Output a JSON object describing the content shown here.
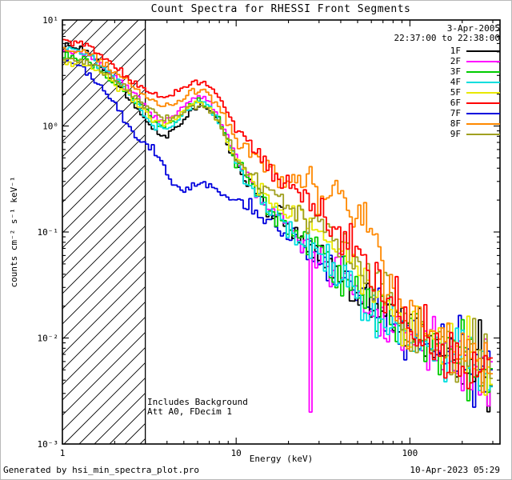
{
  "title": "Count Spectra for RHESSI Front Segments",
  "header": {
    "date": "3-Apr-2005",
    "time_range": "22:37:00 to 22:38:00"
  },
  "annotations": {
    "line1": "Includes Background",
    "line2": "Att A0, FDecim 1"
  },
  "footer": {
    "left": "Generated by hsi_min_spectra_plot.pro",
    "right": "10-Apr-2023 05:29"
  },
  "chart_data": {
    "type": "line",
    "mode": "histogram-step",
    "x_scale": "log",
    "y_scale": "log",
    "title": "Count Spectra for RHESSI Front Segments",
    "xlabel": "Energy (keV)",
    "ylabel": "counts cm⁻² s⁻¹ keV⁻¹",
    "xlim": [
      1,
      330
    ],
    "ylim": [
      0.001,
      10
    ],
    "x_ticks": [
      1,
      10,
      100
    ],
    "y_ticks": [
      0.001,
      0.01,
      0.1,
      1,
      10
    ],
    "grid": false,
    "legend_position": "top-right",
    "hatch_region": {
      "x_start": 1,
      "x_end": 3,
      "style": "diagonal-hatch"
    },
    "series": [
      {
        "name": "1F",
        "color": "#000000",
        "points": [
          [
            1,
            5.8
          ],
          [
            1.4,
            5.2
          ],
          [
            1.8,
            3.2
          ],
          [
            2.2,
            2.2
          ],
          [
            2.8,
            1.35
          ],
          [
            3.3,
            0.95
          ],
          [
            3.8,
            0.8
          ],
          [
            4.5,
            0.9
          ],
          [
            5.5,
            1.35
          ],
          [
            6.3,
            1.6
          ],
          [
            7,
            1.45
          ],
          [
            8,
            1.05
          ],
          [
            9,
            0.65
          ],
          [
            10,
            0.45
          ],
          [
            12,
            0.28
          ],
          [
            15,
            0.17
          ],
          [
            20,
            0.11
          ],
          [
            25,
            0.08
          ],
          [
            30,
            0.06
          ],
          [
            40,
            0.038
          ],
          [
            50,
            0.028
          ],
          [
            60,
            0.022
          ],
          [
            80,
            0.015
          ],
          [
            100,
            0.012
          ],
          [
            130,
            0.0095
          ],
          [
            160,
            0.008
          ],
          [
            200,
            0.007
          ],
          [
            250,
            0.0055
          ],
          [
            300,
            0.0045
          ]
        ]
      },
      {
        "name": "2F",
        "color": "#ff00ff",
        "points": [
          [
            1,
            5.2
          ],
          [
            1.4,
            4.6
          ],
          [
            1.8,
            3.4
          ],
          [
            2.2,
            2.6
          ],
          [
            2.8,
            1.8
          ],
          [
            3.3,
            1.3
          ],
          [
            3.8,
            1.1
          ],
          [
            4.5,
            1.3
          ],
          [
            5.5,
            1.8
          ],
          [
            6.3,
            1.9
          ],
          [
            7,
            1.7
          ],
          [
            8,
            1.2
          ],
          [
            9,
            0.75
          ],
          [
            10,
            0.5
          ],
          [
            12,
            0.3
          ],
          [
            15,
            0.18
          ],
          [
            20,
            0.11
          ],
          [
            25,
            0.08
          ],
          [
            30,
            0.06
          ],
          [
            40,
            0.04
          ],
          [
            50,
            0.028
          ],
          [
            60,
            0.02
          ],
          [
            80,
            0.014
          ],
          [
            100,
            0.011
          ],
          [
            130,
            0.009
          ],
          [
            160,
            0.0075
          ],
          [
            200,
            0.0065
          ],
          [
            250,
            0.005
          ],
          [
            300,
            0.004
          ]
        ],
        "dropouts": [
          {
            "x": 27,
            "y": 0.002
          }
        ]
      },
      {
        "name": "3F",
        "color": "#00cc00",
        "points": [
          [
            1,
            4.6
          ],
          [
            1.4,
            4.2
          ],
          [
            1.8,
            3.0
          ],
          [
            2.2,
            2.3
          ],
          [
            2.8,
            1.6
          ],
          [
            3.3,
            1.15
          ],
          [
            3.8,
            0.95
          ],
          [
            4.5,
            1.15
          ],
          [
            5.5,
            1.6
          ],
          [
            6.3,
            1.75
          ],
          [
            7,
            1.55
          ],
          [
            8,
            1.15
          ],
          [
            9,
            0.7
          ],
          [
            10,
            0.48
          ],
          [
            12,
            0.3
          ],
          [
            15,
            0.18
          ],
          [
            20,
            0.11
          ],
          [
            25,
            0.085
          ],
          [
            30,
            0.065
          ],
          [
            40,
            0.04
          ],
          [
            50,
            0.03
          ],
          [
            60,
            0.022
          ],
          [
            80,
            0.015
          ],
          [
            100,
            0.012
          ],
          [
            130,
            0.0095
          ],
          [
            160,
            0.008
          ],
          [
            200,
            0.007
          ],
          [
            250,
            0.0055
          ],
          [
            300,
            0.0042
          ]
        ]
      },
      {
        "name": "4F",
        "color": "#00dede",
        "points": [
          [
            1,
            5.5
          ],
          [
            1.4,
            4.8
          ],
          [
            1.8,
            3.3
          ],
          [
            2.2,
            2.4
          ],
          [
            2.8,
            1.5
          ],
          [
            3.3,
            1.05
          ],
          [
            3.8,
            0.9
          ],
          [
            4.5,
            1.1
          ],
          [
            5.5,
            1.55
          ],
          [
            6.3,
            1.7
          ],
          [
            7,
            1.5
          ],
          [
            8,
            1.1
          ],
          [
            9,
            0.68
          ],
          [
            10,
            0.46
          ],
          [
            12,
            0.28
          ],
          [
            15,
            0.17
          ],
          [
            20,
            0.1
          ],
          [
            25,
            0.075
          ],
          [
            30,
            0.058
          ],
          [
            40,
            0.036
          ],
          [
            50,
            0.026
          ],
          [
            60,
            0.02
          ],
          [
            80,
            0.013
          ],
          [
            100,
            0.01
          ],
          [
            130,
            0.008
          ],
          [
            160,
            0.007
          ],
          [
            200,
            0.006
          ],
          [
            250,
            0.0045
          ],
          [
            300,
            0.0035
          ]
        ]
      },
      {
        "name": "5F",
        "color": "#e8e800",
        "points": [
          [
            1,
            4.0
          ],
          [
            1.4,
            3.8
          ],
          [
            1.8,
            2.9
          ],
          [
            2.2,
            2.2
          ],
          [
            2.8,
            1.55
          ],
          [
            3.3,
            1.2
          ],
          [
            3.8,
            1.0
          ],
          [
            4.5,
            1.2
          ],
          [
            5.5,
            1.6
          ],
          [
            6.3,
            1.7
          ],
          [
            7,
            1.5
          ],
          [
            8,
            1.1
          ],
          [
            9,
            0.7
          ],
          [
            10,
            0.5
          ],
          [
            12,
            0.33
          ],
          [
            15,
            0.22
          ],
          [
            20,
            0.15
          ],
          [
            25,
            0.12
          ],
          [
            30,
            0.1
          ],
          [
            40,
            0.065
          ],
          [
            50,
            0.045
          ],
          [
            60,
            0.03
          ],
          [
            80,
            0.018
          ],
          [
            100,
            0.013
          ],
          [
            130,
            0.01
          ],
          [
            160,
            0.0085
          ],
          [
            200,
            0.0075
          ],
          [
            250,
            0.006
          ],
          [
            300,
            0.0045
          ]
        ]
      },
      {
        "name": "6F",
        "color": "#ff0000",
        "points": [
          [
            1,
            6.5
          ],
          [
            1.4,
            5.8
          ],
          [
            1.8,
            4.2
          ],
          [
            2.2,
            3.2
          ],
          [
            2.8,
            2.4
          ],
          [
            3.3,
            2.0
          ],
          [
            3.8,
            1.8
          ],
          [
            4.5,
            2.0
          ],
          [
            5.5,
            2.5
          ],
          [
            6.3,
            2.6
          ],
          [
            7,
            2.4
          ],
          [
            8,
            1.9
          ],
          [
            9,
            1.4
          ],
          [
            10,
            1.0
          ],
          [
            12,
            0.65
          ],
          [
            15,
            0.42
          ],
          [
            20,
            0.28
          ],
          [
            25,
            0.2
          ],
          [
            30,
            0.15
          ],
          [
            40,
            0.09
          ],
          [
            50,
            0.06
          ],
          [
            60,
            0.04
          ],
          [
            80,
            0.022
          ],
          [
            100,
            0.014
          ],
          [
            130,
            0.01
          ],
          [
            160,
            0.008
          ],
          [
            200,
            0.0068
          ],
          [
            250,
            0.0055
          ],
          [
            300,
            0.0042
          ]
        ]
      },
      {
        "name": "7F",
        "color": "#0000dd",
        "points": [
          [
            1,
            4.4
          ],
          [
            1.3,
            3.6
          ],
          [
            1.6,
            2.6
          ],
          [
            2.0,
            1.6
          ],
          [
            2.4,
            1.0
          ],
          [
            2.8,
            0.75
          ],
          [
            3.3,
            0.6
          ],
          [
            3.8,
            0.42
          ],
          [
            4.3,
            0.3
          ],
          [
            5,
            0.24
          ],
          [
            5.8,
            0.27
          ],
          [
            6.5,
            0.3
          ],
          [
            7.2,
            0.27
          ],
          [
            8,
            0.23
          ],
          [
            9,
            0.21
          ],
          [
            10,
            0.2
          ],
          [
            12,
            0.17
          ],
          [
            15,
            0.13
          ],
          [
            20,
            0.09
          ],
          [
            25,
            0.07
          ],
          [
            30,
            0.055
          ],
          [
            40,
            0.035
          ],
          [
            50,
            0.026
          ],
          [
            60,
            0.02
          ],
          [
            80,
            0.014
          ],
          [
            100,
            0.011
          ],
          [
            130,
            0.009
          ],
          [
            160,
            0.0078
          ],
          [
            200,
            0.0068
          ],
          [
            250,
            0.0052
          ],
          [
            300,
            0.004
          ]
        ]
      },
      {
        "name": "8F",
        "color": "#ff8800",
        "points": [
          [
            1,
            5.4
          ],
          [
            1.4,
            5.0
          ],
          [
            1.8,
            3.8
          ],
          [
            2.2,
            2.9
          ],
          [
            2.8,
            2.1
          ],
          [
            3.3,
            1.7
          ],
          [
            3.8,
            1.5
          ],
          [
            4.5,
            1.7
          ],
          [
            5.5,
            2.1
          ],
          [
            6.3,
            2.2
          ],
          [
            7,
            2.0
          ],
          [
            8,
            1.5
          ],
          [
            9,
            1.0
          ],
          [
            10,
            0.75
          ],
          [
            12,
            0.55
          ],
          [
            15,
            0.42
          ],
          [
            18,
            0.33
          ],
          [
            22,
            0.3
          ],
          [
            26,
            0.33
          ],
          [
            30,
            0.25
          ],
          [
            35,
            0.2
          ],
          [
            40,
            0.22
          ],
          [
            45,
            0.18
          ],
          [
            50,
            0.13
          ],
          [
            55,
            0.15
          ],
          [
            60,
            0.09
          ],
          [
            70,
            0.05
          ],
          [
            80,
            0.03
          ],
          [
            100,
            0.016
          ],
          [
            130,
            0.011
          ],
          [
            160,
            0.009
          ],
          [
            200,
            0.0075
          ],
          [
            250,
            0.006
          ],
          [
            300,
            0.0045
          ]
        ]
      },
      {
        "name": "9F",
        "color": "#a0a020",
        "points": [
          [
            1,
            4.3
          ],
          [
            1.4,
            4.0
          ],
          [
            1.8,
            3.1
          ],
          [
            2.2,
            2.4
          ],
          [
            2.8,
            1.7
          ],
          [
            3.3,
            1.35
          ],
          [
            3.8,
            1.15
          ],
          [
            4.5,
            1.25
          ],
          [
            5.5,
            1.5
          ],
          [
            6.3,
            1.55
          ],
          [
            7,
            1.4
          ],
          [
            8,
            1.05
          ],
          [
            9,
            0.7
          ],
          [
            10,
            0.52
          ],
          [
            12,
            0.36
          ],
          [
            15,
            0.26
          ],
          [
            20,
            0.18
          ],
          [
            25,
            0.14
          ],
          [
            30,
            0.11
          ],
          [
            40,
            0.07
          ],
          [
            50,
            0.05
          ],
          [
            60,
            0.035
          ],
          [
            80,
            0.02
          ],
          [
            100,
            0.014
          ],
          [
            130,
            0.011
          ],
          [
            160,
            0.0095
          ],
          [
            200,
            0.0085
          ],
          [
            250,
            0.0065
          ],
          [
            300,
            0.005
          ]
        ]
      }
    ]
  }
}
